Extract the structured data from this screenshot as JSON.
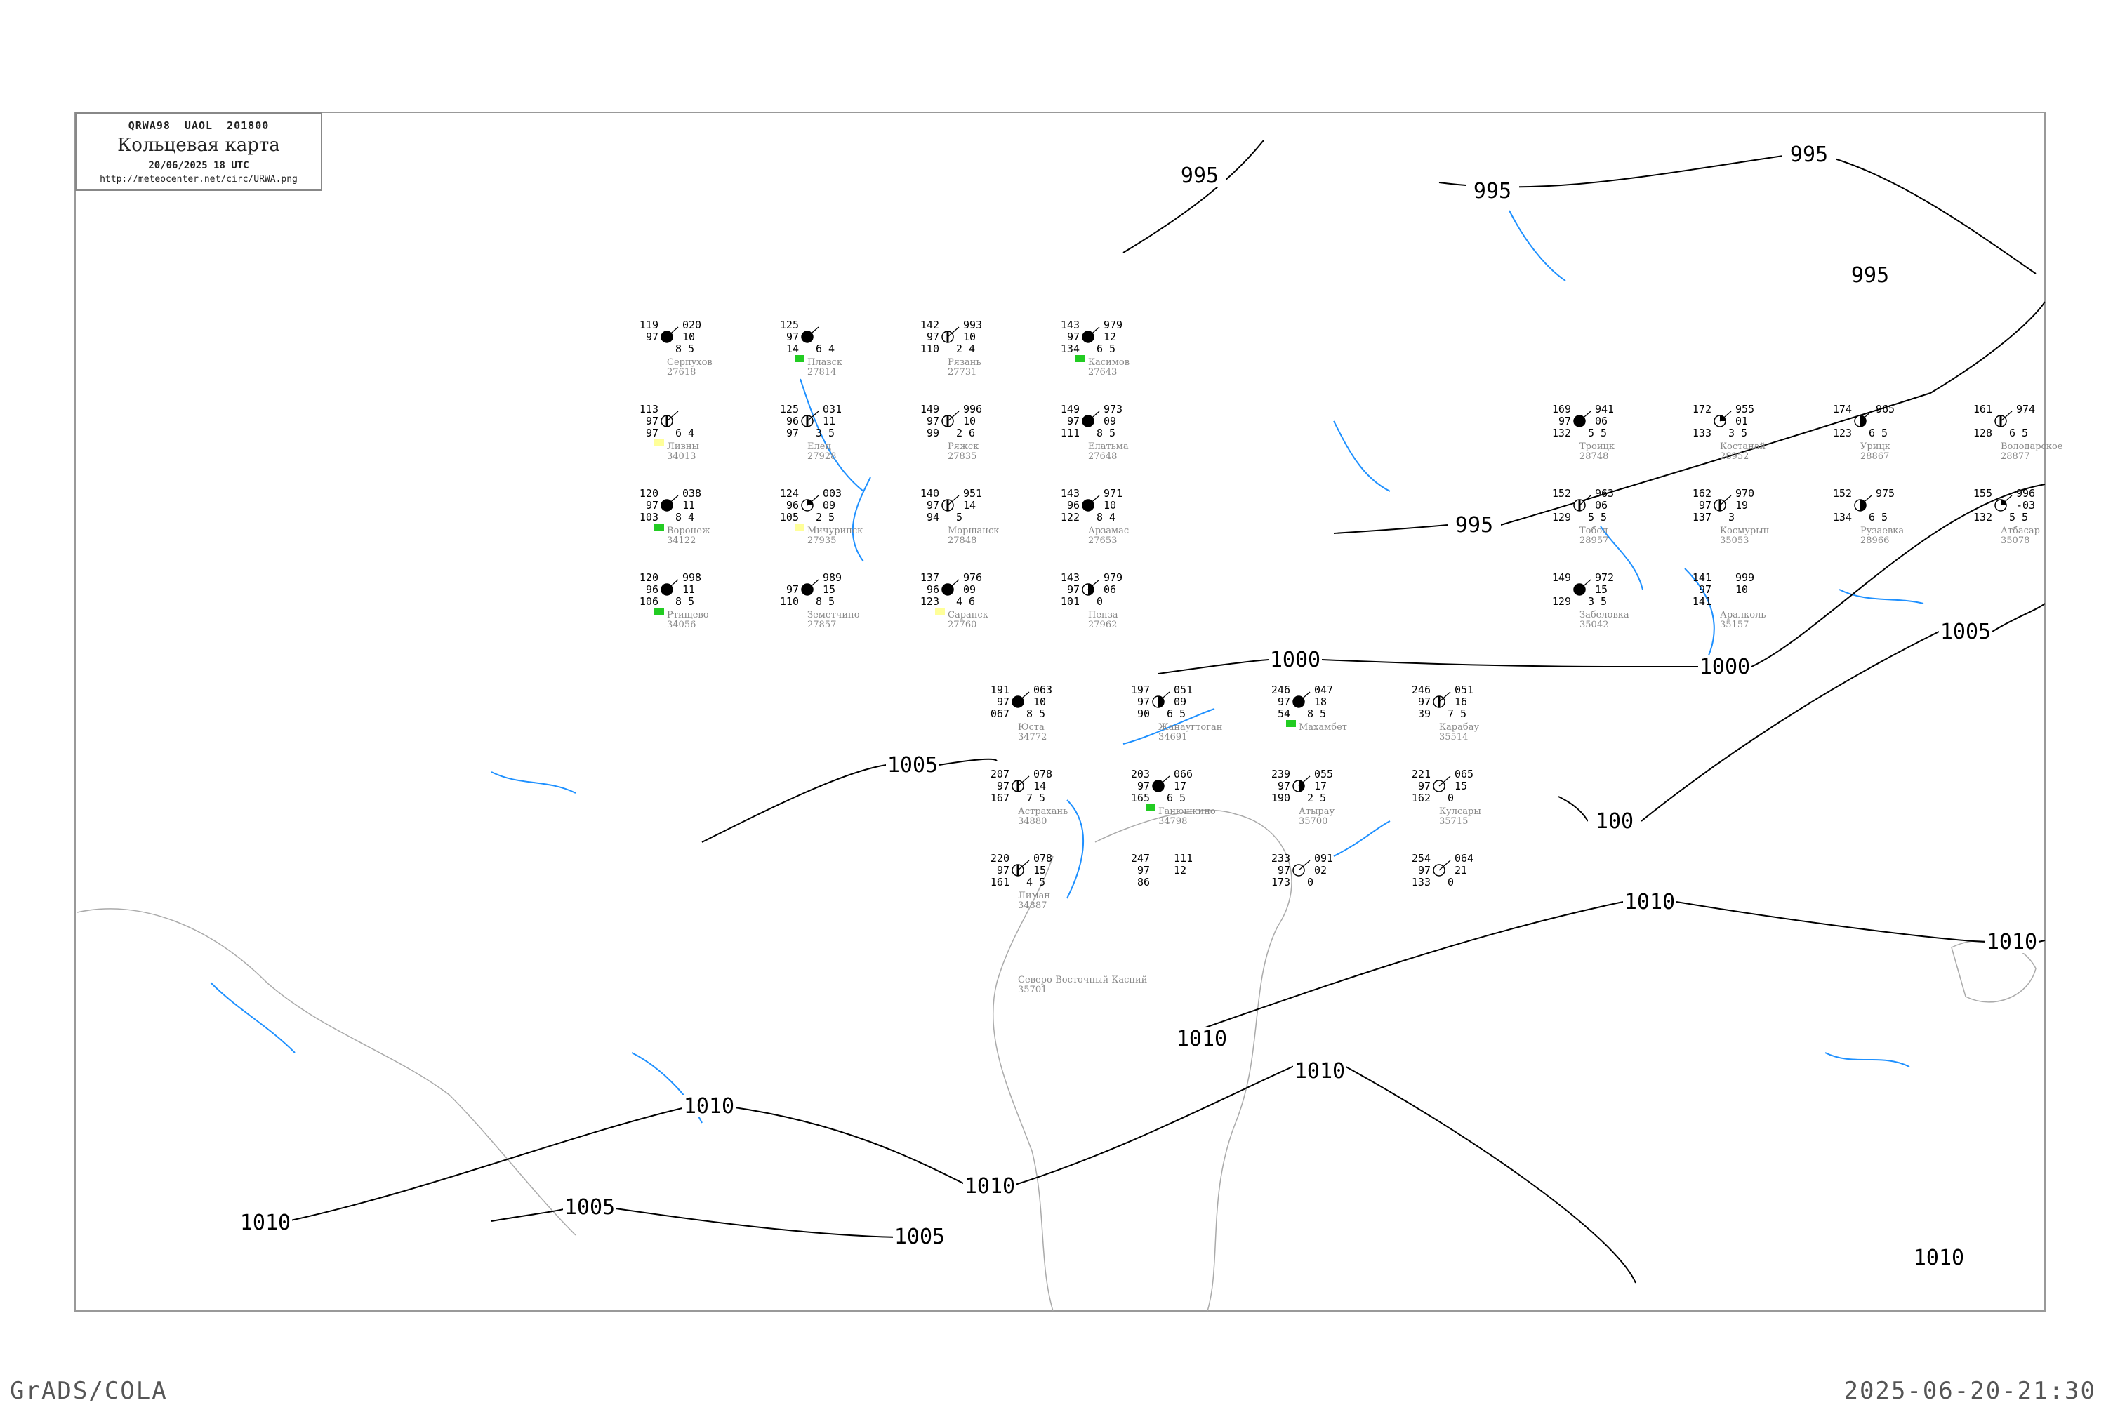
{
  "header": {
    "code": "QRWA98  UAOL  201800",
    "title": "Кольцевая карта",
    "datetime": "20/06/2025 18 UTC",
    "url": "http://meteocenter.net/circ/URWA.png"
  },
  "footer": {
    "left": "GrADS/COLA",
    "right": "2025-06-20-21:30"
  },
  "colors": {
    "isobar": "#000000",
    "river": "#1e90ff",
    "coast": "#aaaaaa",
    "station_name": "#888888",
    "precip_marker": "#22cc22",
    "fog_marker": "#ffff99",
    "alert_marker": "#ff3355"
  },
  "isobar_labels": [
    "995",
    "995",
    "995",
    "995",
    "995",
    "1000",
    "1000",
    "1005",
    "1005",
    "1005",
    "1005",
    "1010",
    "1010",
    "1010",
    "1010",
    "1010",
    "1010",
    "1010",
    "1010",
    "100"
  ],
  "stations": [
    {
      "name": "Жанаугтоган",
      "index": "34691",
      "temp": "197",
      "vis": "97",
      "dew": "90",
      "pressure": "051",
      "tendency": "09",
      "cloud": "6 5",
      "cover": "half"
    },
    {
      "name": "Ганюшкино",
      "index": "34798",
      "temp": "203",
      "vis": "97",
      "dew": "165",
      "pressure": "066",
      "tendency": "17",
      "cloud": "6 5",
      "cover": "full",
      "marker": "precip"
    },
    {
      "name": "Астрахань",
      "index": "34880",
      "temp": "207",
      "vis": "97",
      "dew": "167",
      "pressure": "078",
      "tendency": "14",
      "cloud": "7 5",
      "cover": "split"
    },
    {
      "name": "Лиман",
      "index": "34887",
      "temp": "220",
      "vis": "97",
      "dew": "161",
      "pressure": "078",
      "tendency": "15",
      "cloud": "4 5",
      "cover": "split"
    },
    {
      "name": "Юста",
      "index": "34772",
      "temp": "191",
      "vis": "97",
      "dew": "067",
      "pressure": "063",
      "tendency": "10",
      "cloud": "8 5",
      "cover": "full"
    },
    {
      "name": "Атырау",
      "index": "35700",
      "temp": "239",
      "vis": "97",
      "dew": "190",
      "pressure": "055",
      "tendency": "17",
      "cloud": "2 5",
      "cover": "half"
    },
    {
      "name": "Махамбет",
      "index": "",
      "temp": "246",
      "vis": "97",
      "dew": "54",
      "pressure": "047",
      "tendency": "18",
      "cloud": "8 5",
      "cover": "full",
      "marker": "precip"
    },
    {
      "name": "Карабау",
      "index": "35514",
      "temp": "246",
      "vis": "97",
      "dew": "39",
      "pressure": "051",
      "tendency": "16",
      "cloud": "7 5",
      "cover": "split"
    },
    {
      "name": "Кулсары",
      "index": "35715",
      "temp": "221",
      "vis": "97",
      "dew": "162",
      "pressure": "065",
      "tendency": "15",
      "cloud": "0",
      "cover": "clear"
    },
    {
      "name": "",
      "index": "",
      "temp": "247",
      "vis": "97",
      "dew": "86",
      "pressure": "111",
      "tendency": "12",
      "cloud": "",
      "cover": "none"
    },
    {
      "name": "",
      "index": "",
      "temp": "233",
      "vis": "97",
      "dew": "173",
      "pressure": "091",
      "tendency": "02",
      "cloud": "0",
      "cover": "clear"
    },
    {
      "name": "",
      "index": "",
      "temp": "254",
      "vis": "97",
      "dew": "133",
      "pressure": "064",
      "tendency": "21",
      "cloud": "0",
      "cover": "clear"
    },
    {
      "name": "Рязань",
      "index": "27731",
      "temp": "142",
      "vis": "97",
      "dew": "110",
      "pressure": "993",
      "tendency": "10",
      "cloud": "2 4",
      "cover": "split"
    },
    {
      "name": "Ряжск",
      "index": "27835",
      "temp": "149",
      "vis": "97",
      "dew": "99",
      "pressure": "996",
      "tendency": "10",
      "cloud": "2 6",
      "cover": "split"
    },
    {
      "name": "Мичуринск",
      "index": "27935",
      "temp": "124",
      "vis": "96",
      "dew": "105",
      "pressure": "003",
      "tendency": "09",
      "cloud": "2 5",
      "cover": "quarter",
      "marker": "fog"
    },
    {
      "name": "Моршанск",
      "index": "27848",
      "temp": "140",
      "vis": "97",
      "dew": "94",
      "pressure": "951",
      "tendency": "14",
      "cloud": "5",
      "cover": "split"
    },
    {
      "name": "Земетчино",
      "index": "27857",
      "temp": "",
      "vis": "97",
      "dew": "110",
      "pressure": "989",
      "tendency": "15",
      "cloud": "8 5",
      "cover": "full"
    },
    {
      "name": "Елатьма",
      "index": "27648",
      "temp": "149",
      "vis": "97",
      "dew": "111",
      "pressure": "973",
      "tendency": "09",
      "cloud": "8 5",
      "cover": "full"
    },
    {
      "name": "Касимов",
      "index": "27643",
      "temp": "143",
      "vis": "97",
      "dew": "134",
      "pressure": "979",
      "tendency": "12",
      "cloud": "6 5",
      "cover": "full",
      "marker": "precip"
    },
    {
      "name": "Арзамас",
      "index": "27653",
      "temp": "143",
      "vis": "96",
      "dew": "122",
      "pressure": "971",
      "tendency": "10",
      "cloud": "8 4",
      "cover": "full"
    },
    {
      "name": "Саранск",
      "index": "27760",
      "temp": "137",
      "vis": "96",
      "dew": "123",
      "pressure": "976",
      "tendency": "09",
      "cloud": "4 6",
      "cover": "full",
      "marker": "fog"
    },
    {
      "name": "Пенза",
      "index": "27962",
      "temp": "143",
      "vis": "97",
      "dew": "101",
      "pressure": "979",
      "tendency": "06",
      "cloud": "0",
      "cover": "half"
    },
    {
      "name": "Ртищево",
      "index": "34056",
      "temp": "120",
      "vis": "96",
      "dew": "106",
      "pressure": "998",
      "tendency": "11",
      "cloud": "8 5",
      "cover": "full",
      "marker": "precip"
    },
    {
      "name": "Елец",
      "index": "27928",
      "temp": "125",
      "vis": "96",
      "dew": "97",
      "pressure": "031",
      "tendency": "11",
      "cloud": "3 5",
      "cover": "split"
    },
    {
      "name": "Ливны",
      "index": "34013",
      "temp": "113",
      "vis": "97",
      "dew": "97",
      "pressure": "",
      "tendency": "",
      "cloud": "6 4",
      "cover": "split",
      "marker": "fog"
    },
    {
      "name": "Плавск",
      "index": "27814",
      "temp": "125",
      "vis": "97",
      "dew": "14",
      "pressure": "",
      "tendency": "",
      "cloud": "6 4",
      "cover": "full",
      "marker": "precip"
    },
    {
      "name": "Воронеж",
      "index": "34122",
      "temp": "120",
      "vis": "97",
      "dew": "103",
      "pressure": "038",
      "tendency": "11",
      "cloud": "8 4",
      "cover": "full",
      "marker": "precip"
    },
    {
      "name": "Троицк",
      "index": "28748",
      "temp": "169",
      "vis": "97",
      "dew": "132",
      "pressure": "941",
      "tendency": "06",
      "cloud": "5 5",
      "cover": "full"
    },
    {
      "name": "Костанай",
      "index": "28952",
      "temp": "172",
      "vis": "",
      "dew": "133",
      "pressure": "955",
      "tendency": "01",
      "cloud": "3 5",
      "cover": "quarter"
    },
    {
      "name": "Тобол",
      "index": "28957",
      "temp": "152",
      "vis": "",
      "dew": "129",
      "pressure": "963",
      "tendency": "06",
      "cloud": "5 5",
      "cover": "split"
    },
    {
      "name": "Забеловка",
      "index": "35042",
      "temp": "149",
      "vis": "",
      "dew": "129",
      "pressure": "972",
      "tendency": "15",
      "cloud": "3 5",
      "cover": "full"
    },
    {
      "name": "Урицк",
      "index": "28867",
      "temp": "174",
      "vis": "",
      "dew": "123",
      "pressure": "965",
      "tendency": "",
      "cloud": "6 5",
      "cover": "half"
    },
    {
      "name": "Космурын",
      "index": "35053",
      "temp": "162",
      "vis": "97",
      "dew": "137",
      "pressure": "970",
      "tendency": "19",
      "cloud": "3",
      "cover": "split"
    },
    {
      "name": "Рузаевка",
      "index": "28966",
      "temp": "152",
      "vis": "",
      "dew": "134",
      "pressure": "975",
      "tendency": "",
      "cloud": "6 5",
      "cover": "half"
    },
    {
      "name": "Володарское",
      "index": "28877",
      "temp": "161",
      "vis": "",
      "dew": "128",
      "pressure": "974",
      "tendency": "",
      "cloud": "6 5",
      "cover": "split"
    },
    {
      "name": "Атбасар",
      "index": "35078",
      "temp": "155",
      "vis": "",
      "dew": "132",
      "pressure": "996",
      "tendency": "-03",
      "cloud": "5 5",
      "cover": "quarter"
    },
    {
      "name": "Аралколь",
      "index": "35157",
      "temp": "141",
      "vis": "97",
      "dew": "141",
      "pressure": "999",
      "tendency": "10",
      "cloud": "",
      "cover": "none"
    },
    {
      "name": "Серпухов",
      "index": "27618",
      "temp": "119",
      "vis": "97",
      "dew": "",
      "pressure": "020",
      "tendency": "10",
      "cloud": "8 5",
      "cover": "full"
    },
    {
      "name": "Северо-Восточный Каспий",
      "index": "35701",
      "temp": "",
      "vis": "",
      "dew": "",
      "pressure": "",
      "tendency": "",
      "cloud": "",
      "cover": "none"
    }
  ]
}
